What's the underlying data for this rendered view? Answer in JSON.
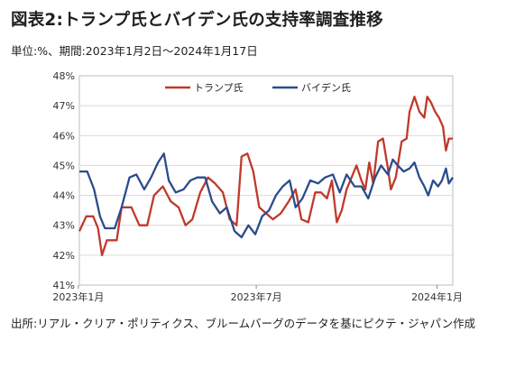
{
  "title": "図表2:トランプ氏とバイデン氏の支持率調査推移",
  "subtitle": "単位:%、期間:2023年1月2日～2024年1月17日",
  "source": "出所:リアル・クリア・ポリティクス、ブルームバーグのデータを基にピクテ・ジャパン作成",
  "colors": {
    "trump": "#c0392b",
    "biden": "#2b4c8c"
  },
  "chart_data": {
    "type": "line",
    "title": "図表2:トランプ氏とバイデン氏の支持率調査推移",
    "xlabel": "",
    "ylabel": "",
    "y_unit": "%",
    "ylim": [
      41,
      48
    ],
    "yticks": [
      "41%",
      "42%",
      "43%",
      "44%",
      "45%",
      "46%",
      "47%",
      "48%"
    ],
    "xlim": [
      "2023-01-02",
      "2024-01-17"
    ],
    "xticks": [
      {
        "date": "2023-01-01",
        "label": "2023年1月"
      },
      {
        "date": "2023-07-01",
        "label": "2023年7月"
      },
      {
        "date": "2024-01-01",
        "label": "2024年1月"
      }
    ],
    "legend": "top",
    "series": [
      {
        "name": "トランプ氏",
        "color": "#c0392b",
        "points": [
          [
            "2023-01-02",
            42.8
          ],
          [
            "2023-01-09",
            43.3
          ],
          [
            "2023-01-16",
            43.3
          ],
          [
            "2023-01-21",
            42.9
          ],
          [
            "2023-01-25",
            42.0
          ],
          [
            "2023-01-30",
            42.5
          ],
          [
            "2023-02-09",
            42.5
          ],
          [
            "2023-02-14",
            43.6
          ],
          [
            "2023-02-24",
            43.6
          ],
          [
            "2023-03-04",
            43.0
          ],
          [
            "2023-03-12",
            43.0
          ],
          [
            "2023-03-19",
            44.0
          ],
          [
            "2023-03-28",
            44.3
          ],
          [
            "2023-04-05",
            43.8
          ],
          [
            "2023-04-13",
            43.6
          ],
          [
            "2023-04-20",
            43.0
          ],
          [
            "2023-04-27",
            43.2
          ],
          [
            "2023-05-05",
            44.1
          ],
          [
            "2023-05-13",
            44.6
          ],
          [
            "2023-05-20",
            44.4
          ],
          [
            "2023-05-28",
            44.1
          ],
          [
            "2023-06-04",
            43.2
          ],
          [
            "2023-06-11",
            43.0
          ],
          [
            "2023-06-16",
            45.3
          ],
          [
            "2023-06-22",
            45.4
          ],
          [
            "2023-06-28",
            44.8
          ],
          [
            "2023-07-04",
            43.6
          ],
          [
            "2023-07-11",
            43.4
          ],
          [
            "2023-07-18",
            43.2
          ],
          [
            "2023-07-26",
            43.4
          ],
          [
            "2023-08-03",
            43.8
          ],
          [
            "2023-08-10",
            44.2
          ],
          [
            "2023-08-16",
            43.2
          ],
          [
            "2023-08-23",
            43.1
          ],
          [
            "2023-08-30",
            44.1
          ],
          [
            "2023-09-05",
            44.1
          ],
          [
            "2023-09-11",
            43.9
          ],
          [
            "2023-09-16",
            44.5
          ],
          [
            "2023-09-21",
            43.1
          ],
          [
            "2023-09-26",
            43.5
          ],
          [
            "2023-10-01",
            44.2
          ],
          [
            "2023-10-06",
            44.6
          ],
          [
            "2023-10-11",
            45.0
          ],
          [
            "2023-10-16",
            44.5
          ],
          [
            "2023-10-20",
            44.2
          ],
          [
            "2023-10-24",
            45.1
          ],
          [
            "2023-10-28",
            44.4
          ],
          [
            "2023-11-02",
            45.8
          ],
          [
            "2023-11-07",
            45.9
          ],
          [
            "2023-11-12",
            44.9
          ],
          [
            "2023-11-15",
            44.2
          ],
          [
            "2023-11-20",
            44.6
          ],
          [
            "2023-11-26",
            45.8
          ],
          [
            "2023-12-01",
            45.9
          ],
          [
            "2023-12-04",
            46.8
          ],
          [
            "2023-12-09",
            47.3
          ],
          [
            "2023-12-14",
            46.8
          ],
          [
            "2023-12-19",
            46.6
          ],
          [
            "2023-12-22",
            47.3
          ],
          [
            "2023-12-26",
            47.1
          ],
          [
            "2023-12-30",
            46.8
          ],
          [
            "2024-01-03",
            46.6
          ],
          [
            "2024-01-07",
            46.3
          ],
          [
            "2024-01-10",
            45.5
          ],
          [
            "2024-01-13",
            45.9
          ],
          [
            "2024-01-17",
            45.9
          ]
        ]
      },
      {
        "name": "バイデン氏",
        "color": "#2b4c8c",
        "points": [
          [
            "2023-01-02",
            44.8
          ],
          [
            "2023-01-10",
            44.8
          ],
          [
            "2023-01-17",
            44.2
          ],
          [
            "2023-01-23",
            43.3
          ],
          [
            "2023-01-28",
            42.9
          ],
          [
            "2023-02-07",
            42.9
          ],
          [
            "2023-02-14",
            43.6
          ],
          [
            "2023-02-22",
            44.6
          ],
          [
            "2023-03-01",
            44.7
          ],
          [
            "2023-03-09",
            44.2
          ],
          [
            "2023-03-16",
            44.6
          ],
          [
            "2023-03-23",
            45.1
          ],
          [
            "2023-03-29",
            45.4
          ],
          [
            "2023-04-03",
            44.5
          ],
          [
            "2023-04-10",
            44.1
          ],
          [
            "2023-04-18",
            44.2
          ],
          [
            "2023-04-25",
            44.5
          ],
          [
            "2023-05-02",
            44.6
          ],
          [
            "2023-05-10",
            44.6
          ],
          [
            "2023-05-17",
            43.8
          ],
          [
            "2023-05-25",
            43.4
          ],
          [
            "2023-06-01",
            43.6
          ],
          [
            "2023-06-09",
            42.8
          ],
          [
            "2023-06-16",
            42.6
          ],
          [
            "2023-06-23",
            43.0
          ],
          [
            "2023-06-30",
            42.7
          ],
          [
            "2023-07-07",
            43.3
          ],
          [
            "2023-07-14",
            43.5
          ],
          [
            "2023-07-21",
            44.0
          ],
          [
            "2023-07-28",
            44.3
          ],
          [
            "2023-08-04",
            44.5
          ],
          [
            "2023-08-10",
            43.6
          ],
          [
            "2023-08-17",
            43.9
          ],
          [
            "2023-08-25",
            44.5
          ],
          [
            "2023-09-02",
            44.4
          ],
          [
            "2023-09-09",
            44.6
          ],
          [
            "2023-09-17",
            44.7
          ],
          [
            "2023-09-24",
            44.1
          ],
          [
            "2023-10-01",
            44.7
          ],
          [
            "2023-10-09",
            44.3
          ],
          [
            "2023-10-16",
            44.3
          ],
          [
            "2023-10-23",
            43.9
          ],
          [
            "2023-10-30",
            44.6
          ],
          [
            "2023-11-05",
            45.0
          ],
          [
            "2023-11-12",
            44.7
          ],
          [
            "2023-11-17",
            45.2
          ],
          [
            "2023-11-22",
            45.0
          ],
          [
            "2023-11-28",
            44.8
          ],
          [
            "2023-12-04",
            44.9
          ],
          [
            "2023-12-09",
            45.1
          ],
          [
            "2023-12-14",
            44.6
          ],
          [
            "2023-12-19",
            44.3
          ],
          [
            "2023-12-23",
            44.0
          ],
          [
            "2023-12-28",
            44.5
          ],
          [
            "2024-01-02",
            44.3
          ],
          [
            "2024-01-06",
            44.5
          ],
          [
            "2024-01-10",
            44.9
          ],
          [
            "2024-01-13",
            44.4
          ],
          [
            "2024-01-17",
            44.6
          ]
        ]
      }
    ]
  }
}
